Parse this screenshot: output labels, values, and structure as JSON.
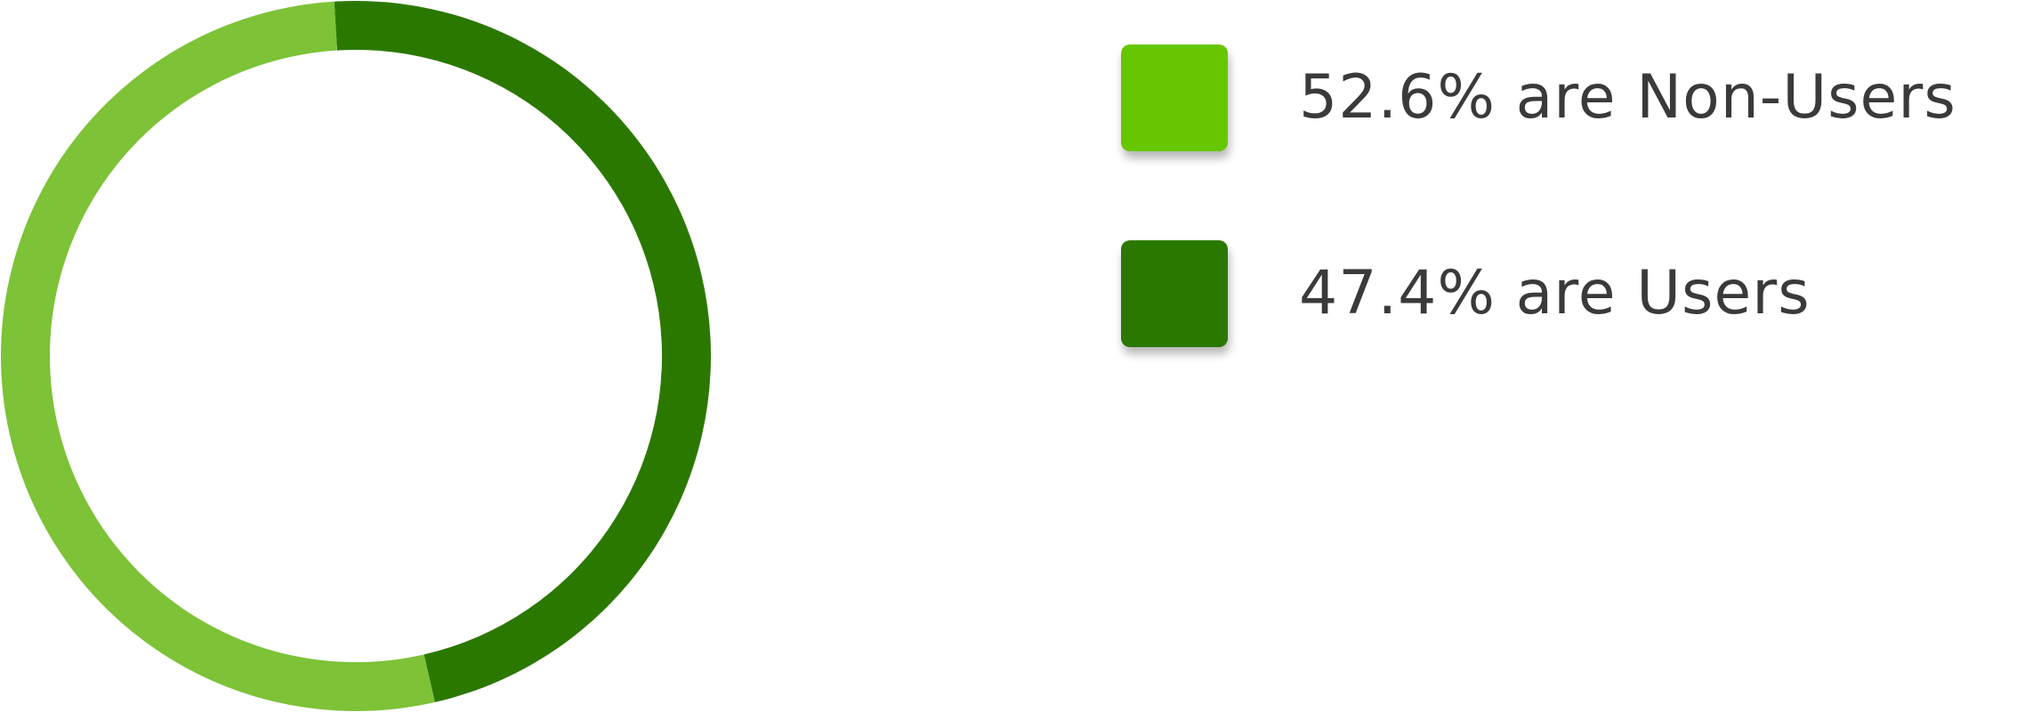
{
  "chart_data": {
    "type": "pie",
    "variant": "donut",
    "slices": [
      {
        "label": "52.6% are Non-Users",
        "value": 52.6,
        "color": "#7dc237",
        "legend_color": "#66c700"
      },
      {
        "label": "47.4% are Users",
        "value": 47.4,
        "color": "#2b7800",
        "legend_color": "#2b7800"
      }
    ],
    "legend_placement": "right",
    "title": ""
  }
}
